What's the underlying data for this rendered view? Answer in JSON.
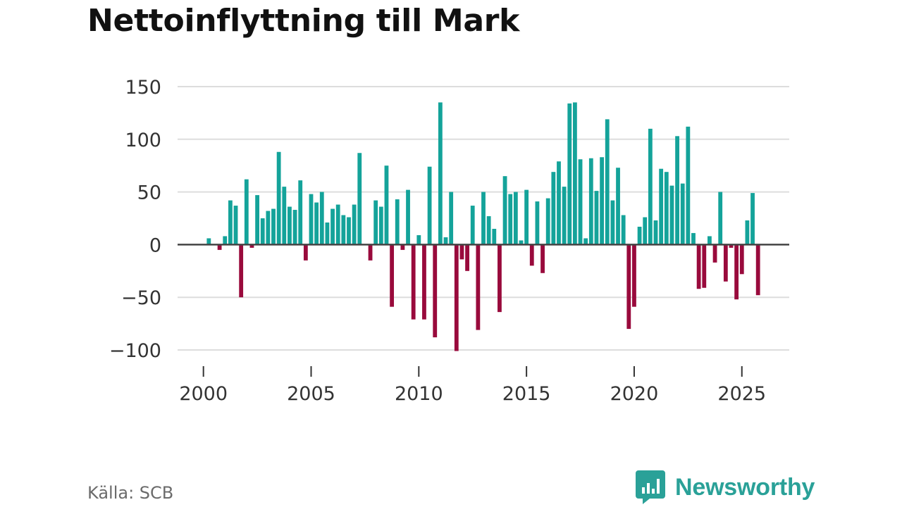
{
  "title": "Nettoinflyttning till Mark",
  "source": "Källa: SCB",
  "brand": {
    "name": "Newsworthy",
    "icon": "newsworthy-logo-icon"
  },
  "colors": {
    "positive": "#14a39a",
    "negative": "#990a3c",
    "grid": "#dddddd",
    "zero": "#444444"
  },
  "chart_data": {
    "type": "bar",
    "title": "Nettoinflyttning till Mark",
    "xlabel": "",
    "ylabel": "",
    "ylim": [
      -100,
      150
    ],
    "xlim": [
      1998.8,
      2027.2
    ],
    "yticks": [
      150,
      100,
      50,
      0,
      -50,
      -100
    ],
    "ytick_labels": [
      "150",
      "100",
      "50",
      "0",
      "−50",
      "−100"
    ],
    "xticks": [
      2000,
      2005,
      2010,
      2015,
      2020,
      2025
    ],
    "xtick_labels": [
      "2000",
      "2005",
      "2010",
      "2015",
      "2020",
      "2025"
    ],
    "grid": true,
    "bar_width_years": 0.19,
    "x": [
      2000.0,
      2000.25,
      2000.5,
      2000.75,
      2001.0,
      2001.25,
      2001.5,
      2001.75,
      2002.0,
      2002.25,
      2002.5,
      2002.75,
      2003.0,
      2003.25,
      2003.5,
      2003.75,
      2004.0,
      2004.25,
      2004.5,
      2004.75,
      2005.0,
      2005.25,
      2005.5,
      2005.75,
      2006.0,
      2006.25,
      2006.5,
      2006.75,
      2007.0,
      2007.25,
      2007.5,
      2007.75,
      2008.0,
      2008.25,
      2008.5,
      2008.75,
      2009.0,
      2009.25,
      2009.5,
      2009.75,
      2010.0,
      2010.25,
      2010.5,
      2010.75,
      2011.0,
      2011.25,
      2011.5,
      2011.75,
      2012.0,
      2012.25,
      2012.5,
      2012.75,
      2013.0,
      2013.25,
      2013.5,
      2013.75,
      2014.0,
      2014.25,
      2014.5,
      2014.75,
      2015.0,
      2015.25,
      2015.5,
      2015.75,
      2016.0,
      2016.25,
      2016.5,
      2016.75,
      2017.0,
      2017.25,
      2017.5,
      2017.75,
      2018.0,
      2018.25,
      2018.5,
      2018.75,
      2019.0,
      2019.25,
      2019.5,
      2019.75,
      2020.0,
      2020.25,
      2020.5,
      2020.75,
      2021.0,
      2021.25,
      2021.5,
      2021.75,
      2022.0,
      2022.25,
      2022.5,
      2022.75,
      2023.0,
      2023.25,
      2023.5,
      2023.75,
      2024.0,
      2024.25,
      2024.5,
      2024.75,
      2025.0,
      2025.25,
      2025.5,
      2025.75
    ],
    "values": [
      0,
      6,
      0,
      -5,
      8,
      42,
      37,
      -50,
      62,
      -3,
      47,
      25,
      32,
      34,
      88,
      55,
      36,
      33,
      61,
      -15,
      48,
      40,
      50,
      21,
      34,
      38,
      28,
      26,
      38,
      87,
      0,
      -15,
      42,
      36,
      75,
      -59,
      43,
      -5,
      52,
      -71,
      9,
      -71,
      74,
      -88,
      135,
      7,
      50,
      -101,
      -14,
      -25,
      37,
      -81,
      50,
      27,
      15,
      -64,
      65,
      48,
      50,
      4,
      52,
      -20,
      41,
      -27,
      44,
      69,
      79,
      55,
      134,
      135,
      81,
      6,
      82,
      51,
      83,
      119,
      42,
      73,
      28,
      -80,
      -59,
      17,
      26,
      110,
      23,
      72,
      69,
      56,
      103,
      58,
      112,
      11,
      -42,
      -41,
      8,
      -17,
      50,
      -35,
      -3,
      -52,
      -28,
      23,
      49,
      -48
    ]
  }
}
